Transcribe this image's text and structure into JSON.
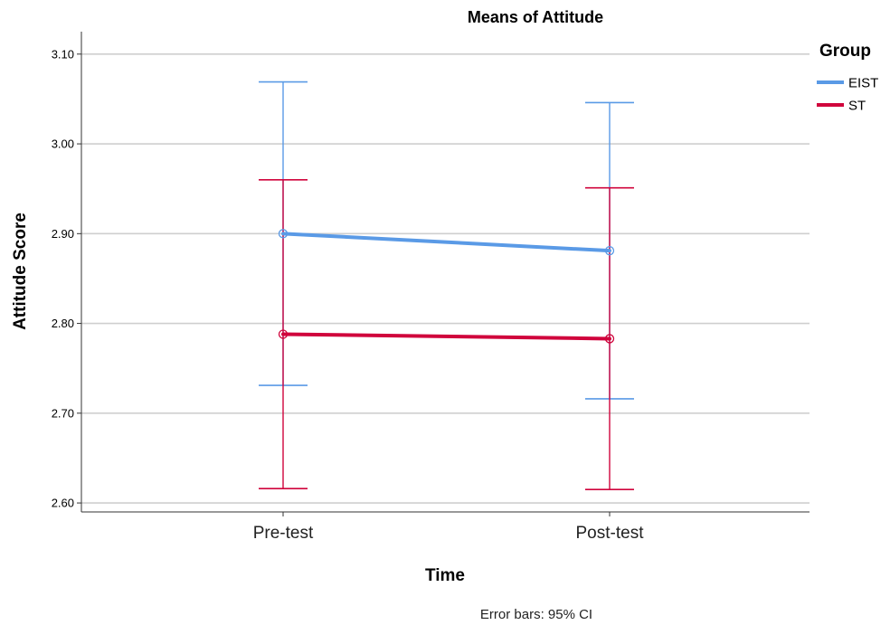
{
  "chart_data": {
    "type": "line",
    "title": "Means of Attitude",
    "xlabel": "Time",
    "ylabel": "Attitude Score",
    "categories": [
      "Pre-test",
      "Post-test"
    ],
    "ylim": [
      2.59,
      3.125
    ],
    "yticks": [
      2.6,
      2.7,
      2.8,
      2.9,
      3.0,
      3.1
    ],
    "ytick_labels": [
      "2.60",
      "2.70",
      "2.80",
      "2.90",
      "3.00",
      "3.10"
    ],
    "grid": true,
    "legend_title": "Group",
    "legend_position": "top-right",
    "footnote": "Error bars: 95% CI",
    "series": [
      {
        "name": "EIST",
        "color": "#5a9ae6",
        "values": [
          2.9,
          2.881
        ],
        "ci_low": [
          2.731,
          2.716
        ],
        "ci_high": [
          3.069,
          3.046
        ]
      },
      {
        "name": "ST",
        "color": "#d0043c",
        "values": [
          2.788,
          2.783
        ],
        "ci_low": [
          2.616,
          2.615
        ],
        "ci_high": [
          2.96,
          2.951
        ]
      }
    ]
  }
}
